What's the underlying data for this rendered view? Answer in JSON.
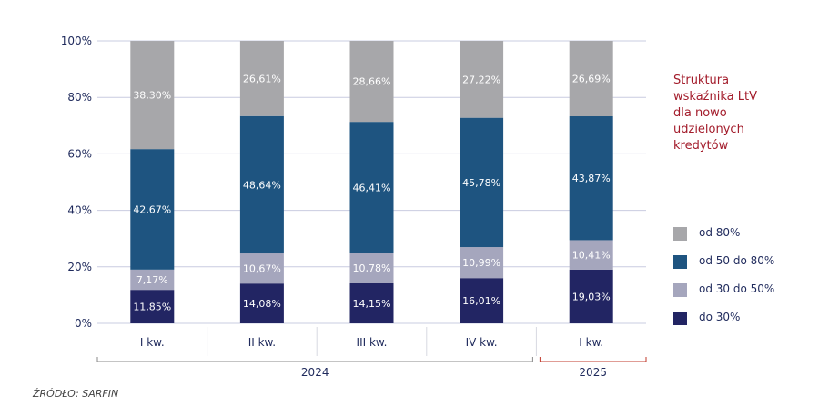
{
  "chart_data": {
    "type": "bar",
    "stacked": true,
    "title_lines": [
      "Struktura",
      "wskaźnika LtV",
      "dla nowo",
      "udzielonych",
      "kredytów"
    ],
    "categories": [
      "I kw.",
      "II kw.",
      "III kw.",
      "IV kw.",
      "I kw."
    ],
    "groups": [
      {
        "label": "2024",
        "categories": [
          "I kw.",
          "II kw.",
          "III kw.",
          "IV kw."
        ]
      },
      {
        "label": "2025",
        "categories": [
          "I kw."
        ]
      }
    ],
    "series": [
      {
        "name": "do 30%",
        "color": "#222563",
        "values": [
          11.85,
          14.08,
          14.15,
          16.01,
          19.03
        ],
        "labels": [
          "11,85%",
          "14,08%",
          "14,15%",
          "16,01%",
          "19,03%"
        ]
      },
      {
        "name": "od 30 do 50%",
        "color": "#a5a6bd",
        "values": [
          7.17,
          10.67,
          10.78,
          10.99,
          10.41
        ],
        "labels": [
          "7,17%",
          "10,67%",
          "10,78%",
          "10,99%",
          "10,41%"
        ]
      },
      {
        "name": "od 50 do 80%",
        "color": "#1e5480",
        "values": [
          42.67,
          48.64,
          46.41,
          45.78,
          43.87
        ],
        "labels": [
          "42,67%",
          "48,64%",
          "46,41%",
          "45,78%",
          "43,87%"
        ]
      },
      {
        "name": "od 80%",
        "color": "#a7a7aa",
        "values": [
          38.3,
          26.61,
          28.66,
          27.22,
          26.69
        ],
        "labels": [
          "38,30%",
          "26,61%",
          "28,66%",
          "27,22%",
          "26,69%"
        ]
      }
    ],
    "legend_order": [
      "od 80%",
      "od 50 do 80%",
      "od 30 do 50%",
      "do 30%"
    ],
    "ylim": [
      0,
      100
    ],
    "yticks": [
      0,
      20,
      40,
      60,
      80,
      100
    ],
    "ytick_labels": [
      "0%",
      "20%",
      "40%",
      "60%",
      "80%",
      "100%"
    ],
    "grid": true,
    "legend_position": "right",
    "colors": {
      "title": "#a31c2b",
      "axis_text": "#1f2a5c",
      "grid": "#c9cce0",
      "group_2025": "#c0392b",
      "group_2024": "#8a8a8a"
    }
  },
  "source": "ŹRÓDŁO: SARFIN"
}
